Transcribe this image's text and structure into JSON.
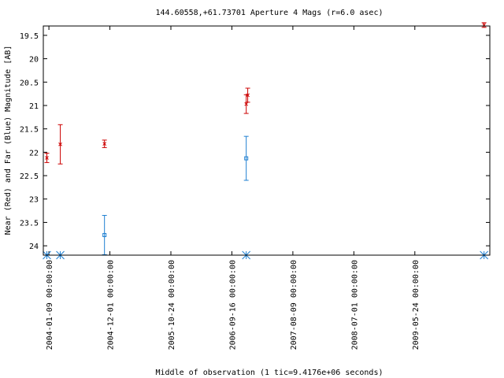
{
  "chart_data": {
    "type": "scatter",
    "title": "144.60558,+61.73701   Aperture 4 Mags (r=6.0 asec)",
    "xlabel": "Middle of observation (1 tic=9.4176e+06 seconds)",
    "ylabel": "Near (Red) and Far (Blue) Magnitude [AB]",
    "y_axis_inverted": true,
    "ylim": [
      24.2,
      19.3
    ],
    "yticks": [
      19.5,
      20,
      20.5,
      21,
      21.5,
      22,
      22.5,
      23,
      23.5,
      24
    ],
    "ytick_labels": [
      "19.5",
      "20",
      "20.5",
      "21",
      "21.5",
      "22",
      "22.5",
      "23",
      "23.5",
      "24"
    ],
    "xlim": [
      "2003-12-10",
      "2010-06-30"
    ],
    "xticks": [
      "2004-01-09",
      "2004-12-01",
      "2005-10-24",
      "2006-09-16",
      "2007-08-09",
      "2008-07-01",
      "2009-05-24"
    ],
    "xtick_labels": [
      "2004-01-09 00:00:00",
      "2004-12-01 00:00:00",
      "2005-10-24 00:00:00",
      "2006-09-16 00:00:00",
      "2007-08-09 00:00:00",
      "2008-07-01 00:00:00",
      "2009-05-24 00:00:00"
    ],
    "grid": false,
    "series": [
      {
        "color": "#cc0000",
        "marker": "x",
        "points": [
          {
            "x": "2003-12-29",
            "y": 22.12,
            "err": 0.1
          },
          {
            "x": "2004-03-10",
            "y": 21.83,
            "err": 0.42
          },
          {
            "x": "2004-11-02",
            "y": 21.82,
            "err": 0.08
          },
          {
            "x": "2006-12-02",
            "y": 20.97,
            "err": 0.2
          },
          {
            "x": "2006-12-10",
            "y": 20.78,
            "err": 0.15
          },
          {
            "x": "2010-05-30",
            "y": 19.28,
            "err": 0.05
          }
        ]
      },
      {
        "color": "#1e7fd1",
        "marker": "square",
        "points": [
          {
            "x": "2004-11-02",
            "y": 23.77,
            "err": 0.42
          },
          {
            "x": "2006-12-02",
            "y": 22.13,
            "err": 0.47
          }
        ]
      }
    ],
    "upper_limits": {
      "color": "#1e7fd1",
      "marker": "asterisk",
      "x": [
        "2003-12-29",
        "2004-03-10",
        "2006-12-02",
        "2010-05-30"
      ]
    }
  }
}
